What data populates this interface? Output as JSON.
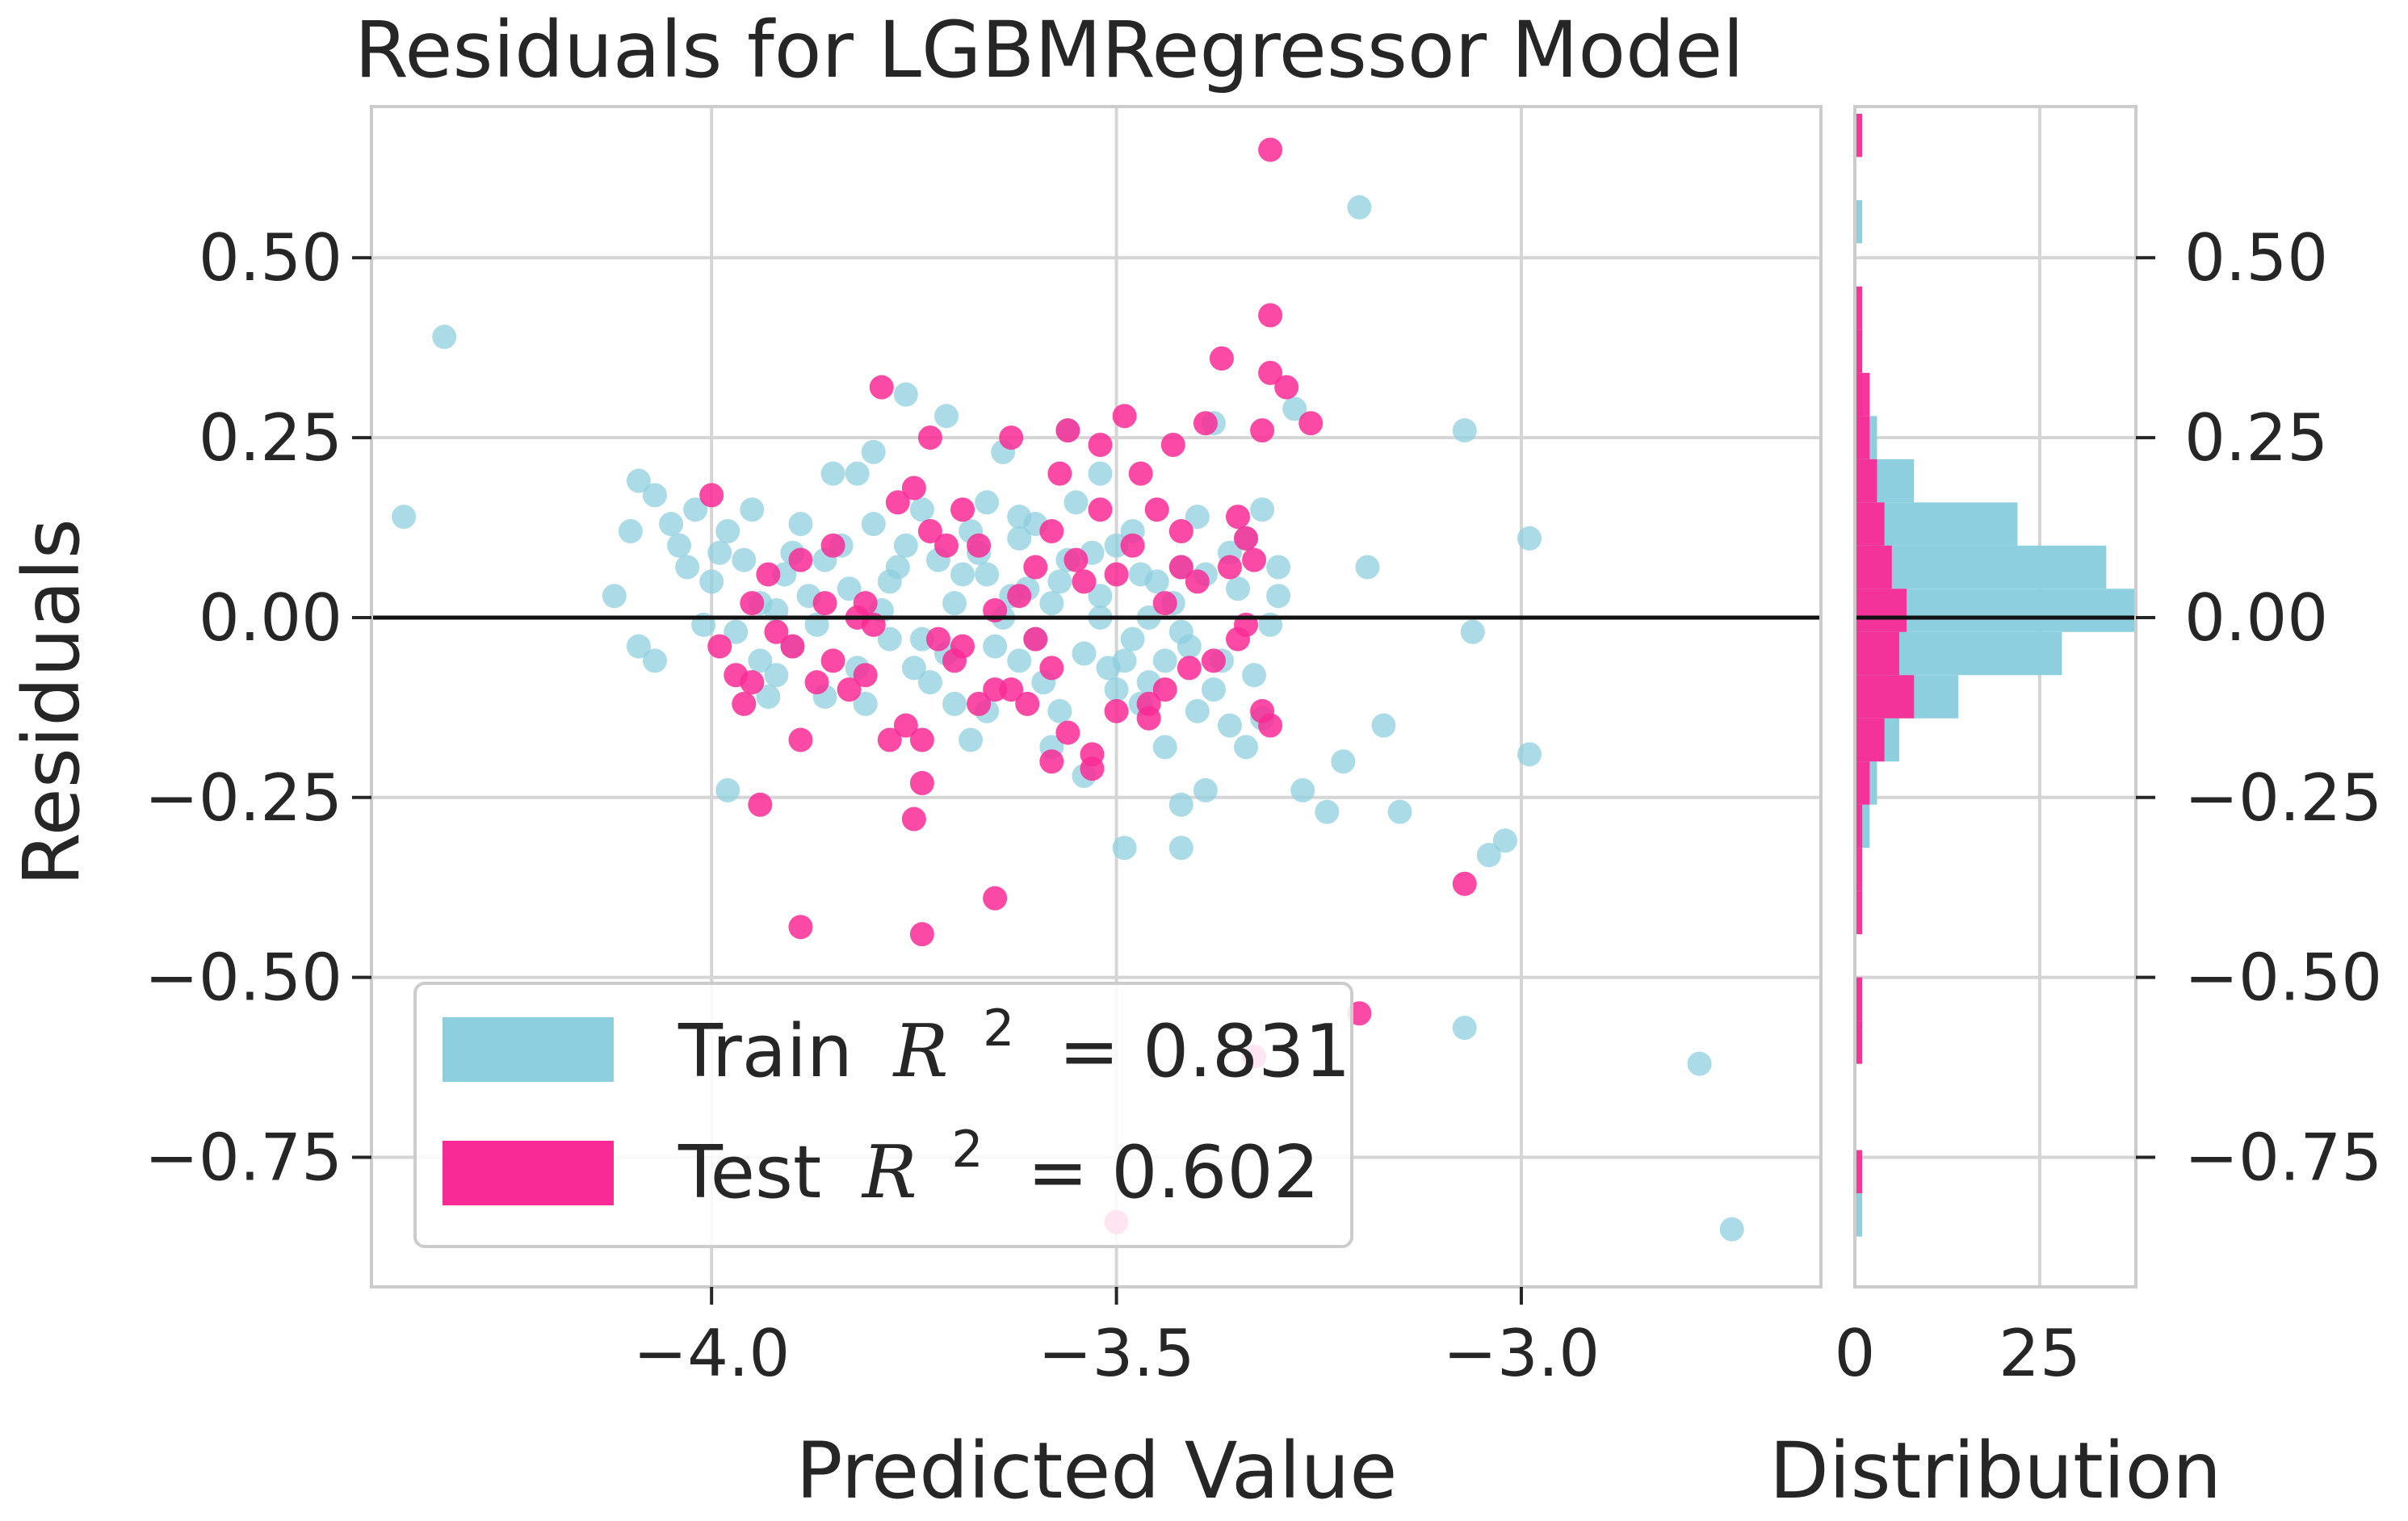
{
  "chart_data": {
    "type": "scatter",
    "title": "Residuals for LGBMRegressor Model",
    "xlabel": "Predicted Value",
    "ylabel": "Residuals",
    "hist_xlabel": "Distribution",
    "xlim": [
      -4.42,
      -2.63
    ],
    "ylim": [
      -0.93,
      0.71
    ],
    "xticks": [
      -4.0,
      -3.5,
      -3.0
    ],
    "xtick_labels": [
      "−4.0",
      "−3.5",
      "−3.0"
    ],
    "yticks": [
      0.5,
      0.25,
      0.0,
      -0.25,
      -0.5,
      -0.75
    ],
    "ytick_labels": [
      "0.50",
      "0.25",
      "0.00",
      "−0.25",
      "−0.50",
      "−0.75"
    ],
    "hist_xlim": [
      0,
      38
    ],
    "hist_xticks": [
      0,
      25
    ],
    "hist_xtick_labels": [
      "0",
      "25"
    ],
    "hline": 0.0,
    "colors": {
      "train": "#8ecfdf",
      "test": "#f92a95",
      "hline": "#111111",
      "frame": "#cccccc",
      "grid": "#d5d5d5"
    },
    "legend": {
      "location": "lower-left",
      "entries": [
        {
          "label": "Train",
          "math_var": "R",
          "math_exp": "2",
          "equals": "= 0.831",
          "series": "train"
        },
        {
          "label": "Test",
          "math_var": "R",
          "math_exp": "2",
          "equals": "= 0.602",
          "series": "test"
        }
      ]
    },
    "series": [
      {
        "name": "Train",
        "points": [
          [
            -4.33,
            0.39
          ],
          [
            -4.38,
            0.14
          ],
          [
            -3.2,
            0.57
          ],
          [
            -3.07,
            0.26
          ],
          [
            -2.99,
            0.11
          ],
          [
            -3.19,
            0.07
          ],
          [
            -3.06,
            -0.02
          ],
          [
            -2.99,
            -0.19
          ],
          [
            -3.02,
            -0.31
          ],
          [
            -3.04,
            -0.33
          ],
          [
            -3.07,
            -0.57
          ],
          [
            -2.78,
            -0.62
          ],
          [
            -2.74,
            -0.85
          ],
          [
            -3.17,
            -0.15
          ],
          [
            -3.22,
            -0.2
          ],
          [
            -3.15,
            -0.27
          ],
          [
            -3.24,
            -0.27
          ],
          [
            -3.27,
            -0.24
          ],
          [
            -3.28,
            0.29
          ],
          [
            -3.49,
            -0.32
          ],
          [
            -3.42,
            -0.32
          ],
          [
            -3.42,
            -0.26
          ],
          [
            -3.39,
            -0.24
          ],
          [
            -3.98,
            -0.24
          ],
          [
            -4.12,
            0.03
          ],
          [
            -4.1,
            0.12
          ],
          [
            -4.09,
            0.19
          ],
          [
            -4.07,
            0.17
          ],
          [
            -4.09,
            -0.04
          ],
          [
            -4.07,
            -0.06
          ],
          [
            -4.04,
            0.1
          ],
          [
            -4.02,
            0.15
          ],
          [
            -4.0,
            0.05
          ],
          [
            -3.98,
            0.12
          ],
          [
            -3.96,
            0.08
          ],
          [
            -3.94,
            0.02
          ],
          [
            -3.92,
            -0.08
          ],
          [
            -3.9,
            0.09
          ],
          [
            -3.88,
            0.03
          ],
          [
            -3.86,
            -0.11
          ],
          [
            -3.84,
            0.1
          ],
          [
            -3.82,
            0.2
          ],
          [
            -3.8,
            0.23
          ],
          [
            -3.78,
            0.05
          ],
          [
            -3.76,
            0.31
          ],
          [
            -3.74,
            -0.03
          ],
          [
            -3.72,
            0.08
          ],
          [
            -3.7,
            -0.12
          ],
          [
            -3.68,
            0.12
          ],
          [
            -3.66,
            0.06
          ],
          [
            -3.64,
            0.23
          ],
          [
            -3.62,
            0.14
          ],
          [
            -3.6,
            -0.03
          ],
          [
            -3.58,
            0.02
          ],
          [
            -3.56,
            0.26
          ],
          [
            -3.54,
            -0.22
          ],
          [
            -3.52,
            0.03
          ],
          [
            -3.5,
            -0.1
          ],
          [
            -3.48,
            0.12
          ],
          [
            -3.46,
            0.0
          ],
          [
            -3.44,
            -0.06
          ],
          [
            -3.42,
            0.07
          ],
          [
            -3.4,
            -0.13
          ],
          [
            -3.38,
            0.27
          ],
          [
            -3.36,
            0.09
          ],
          [
            -3.34,
            -0.18
          ],
          [
            -3.32,
            0.15
          ],
          [
            -3.3,
            0.03
          ],
          [
            -3.68,
            -0.17
          ],
          [
            -3.71,
            0.28
          ],
          [
            -3.63,
            0.03
          ],
          [
            -3.57,
            -0.13
          ],
          [
            -3.53,
            0.09
          ],
          [
            -3.47,
            0.06
          ],
          [
            -3.44,
            -0.18
          ],
          [
            -3.4,
            0.14
          ],
          [
            -3.36,
            -0.15
          ],
          [
            -3.85,
            0.2
          ],
          [
            -3.8,
            0.13
          ],
          [
            -3.75,
            -0.07
          ],
          [
            -3.7,
            0.02
          ],
          [
            -3.65,
            -0.04
          ],
          [
            -3.55,
            0.16
          ],
          [
            -3.49,
            -0.06
          ],
          [
            -3.45,
            0.05
          ],
          [
            -3.62,
            0.11
          ],
          [
            -3.58,
            -0.18
          ],
          [
            -3.52,
            0.2
          ],
          [
            -3.92,
            0.01
          ],
          [
            -3.97,
            -0.02
          ],
          [
            -4.03,
            0.07
          ],
          [
            -4.05,
            0.13
          ],
          [
            -3.9,
            -0.04
          ],
          [
            -3.86,
            0.08
          ],
          [
            -3.82,
            -0.07
          ],
          [
            -3.79,
            0.01
          ],
          [
            -3.76,
            0.1
          ],
          [
            -3.73,
            -0.09
          ],
          [
            -3.69,
            0.06
          ],
          [
            -3.66,
            -0.13
          ],
          [
            -3.61,
            0.04
          ],
          [
            -3.59,
            -0.09
          ],
          [
            -3.56,
            0.08
          ],
          [
            -3.51,
            -0.07
          ],
          [
            -3.47,
            -0.12
          ],
          [
            -3.43,
            0.02
          ],
          [
            -3.41,
            -0.04
          ],
          [
            -3.38,
            -0.1
          ],
          [
            -3.35,
            0.04
          ],
          [
            -3.33,
            -0.08
          ],
          [
            -3.31,
            -0.01
          ],
          [
            -3.95,
            0.15
          ],
          [
            -3.93,
            -0.11
          ],
          [
            -3.89,
            0.13
          ],
          [
            -3.87,
            -0.01
          ],
          [
            -3.83,
            0.04
          ],
          [
            -3.81,
            -0.12
          ],
          [
            -3.77,
            0.07
          ],
          [
            -3.74,
            0.15
          ],
          [
            -3.71,
            -0.05
          ],
          [
            -3.67,
            0.09
          ],
          [
            -3.64,
            0.0
          ],
          [
            -3.6,
            0.13
          ],
          [
            -3.57,
            0.05
          ],
          [
            -3.54,
            -0.05
          ],
          [
            -3.5,
            0.1
          ],
          [
            -3.46,
            -0.09
          ],
          [
            -3.42,
            -0.02
          ],
          [
            -3.39,
            0.06
          ],
          [
            -3.37,
            -0.06
          ],
          [
            -3.34,
            0.11
          ],
          [
            -4.01,
            -0.01
          ],
          [
            -3.99,
            0.09
          ],
          [
            -3.94,
            -0.06
          ],
          [
            -3.91,
            0.06
          ],
          [
            -3.78,
            -0.03
          ],
          [
            -3.66,
            0.16
          ],
          [
            -3.62,
            -0.06
          ],
          [
            -3.52,
            0.0
          ],
          [
            -3.48,
            -0.03
          ],
          [
            -3.32,
            -0.14
          ],
          [
            -3.3,
            0.07
          ]
        ]
      },
      {
        "name": "Test",
        "points": [
          [
            -3.31,
            0.65
          ],
          [
            -3.31,
            0.42
          ],
          [
            -3.31,
            0.34
          ],
          [
            -3.29,
            0.32
          ],
          [
            -3.26,
            0.27
          ],
          [
            -3.37,
            0.36
          ],
          [
            -3.32,
            0.26
          ],
          [
            -3.39,
            0.27
          ],
          [
            -3.43,
            0.24
          ],
          [
            -3.56,
            0.26
          ],
          [
            -3.52,
            0.24
          ],
          [
            -3.49,
            0.28
          ],
          [
            -3.47,
            0.2
          ],
          [
            -3.45,
            0.15
          ],
          [
            -3.42,
            0.12
          ],
          [
            -3.4,
            0.05
          ],
          [
            -3.35,
            0.14
          ],
          [
            -3.34,
            0.11
          ],
          [
            -3.33,
            0.08
          ],
          [
            -3.34,
            -0.01
          ],
          [
            -3.32,
            -0.13
          ],
          [
            -3.31,
            -0.15
          ],
          [
            -3.35,
            -0.03
          ],
          [
            -3.38,
            -0.06
          ],
          [
            -3.41,
            -0.07
          ],
          [
            -3.44,
            -0.1
          ],
          [
            -3.46,
            -0.14
          ],
          [
            -3.5,
            -0.13
          ],
          [
            -3.53,
            -0.19
          ],
          [
            -3.53,
            -0.21
          ],
          [
            -3.56,
            -0.16
          ],
          [
            -3.58,
            -0.07
          ],
          [
            -3.61,
            -0.12
          ],
          [
            -3.63,
            -0.1
          ],
          [
            -3.65,
            -0.1
          ],
          [
            -3.67,
            -0.12
          ],
          [
            -3.7,
            -0.06
          ],
          [
            -3.72,
            -0.03
          ],
          [
            -3.74,
            -0.17
          ],
          [
            -3.76,
            -0.15
          ],
          [
            -3.78,
            -0.17
          ],
          [
            -3.81,
            -0.08
          ],
          [
            -3.83,
            -0.1
          ],
          [
            -3.85,
            -0.06
          ],
          [
            -3.87,
            -0.09
          ],
          [
            -3.9,
            -0.04
          ],
          [
            -3.92,
            -0.02
          ],
          [
            -3.95,
            -0.09
          ],
          [
            -3.97,
            -0.08
          ],
          [
            -3.99,
            -0.04
          ],
          [
            -3.95,
            0.02
          ],
          [
            -3.93,
            0.06
          ],
          [
            -3.89,
            0.08
          ],
          [
            -3.86,
            0.02
          ],
          [
            -3.82,
            0.0
          ],
          [
            -3.8,
            -0.01
          ],
          [
            -3.77,
            0.16
          ],
          [
            -3.75,
            0.18
          ],
          [
            -3.73,
            0.12
          ],
          [
            -3.71,
            0.1
          ],
          [
            -3.69,
            0.15
          ],
          [
            -3.67,
            0.1
          ],
          [
            -3.65,
            0.01
          ],
          [
            -3.62,
            0.03
          ],
          [
            -3.6,
            0.07
          ],
          [
            -3.58,
            0.12
          ],
          [
            -3.55,
            0.08
          ],
          [
            -3.52,
            0.15
          ],
          [
            -3.5,
            0.06
          ],
          [
            -3.48,
            0.1
          ],
          [
            -3.44,
            0.02
          ],
          [
            -3.42,
            0.07
          ],
          [
            -3.79,
            0.32
          ],
          [
            -3.73,
            0.25
          ],
          [
            -3.63,
            0.25
          ],
          [
            -3.57,
            0.2
          ],
          [
            -3.89,
            -0.17
          ],
          [
            -3.94,
            -0.26
          ],
          [
            -3.96,
            -0.12
          ],
          [
            -4.0,
            0.17
          ],
          [
            -3.81,
            0.02
          ],
          [
            -3.74,
            -0.23
          ],
          [
            -3.75,
            -0.28
          ],
          [
            -3.89,
            -0.43
          ],
          [
            -3.74,
            -0.44
          ],
          [
            -3.65,
            -0.39
          ],
          [
            -3.07,
            -0.37
          ],
          [
            -3.2,
            -0.55
          ],
          [
            -3.5,
            -0.84
          ],
          [
            -3.33,
            -0.61
          ],
          [
            -3.85,
            0.1
          ],
          [
            -3.69,
            -0.04
          ],
          [
            -3.6,
            -0.03
          ],
          [
            -3.54,
            0.05
          ],
          [
            -3.36,
            0.07
          ],
          [
            -3.58,
            -0.2
          ],
          [
            -3.46,
            -0.12
          ]
        ]
      }
    ],
    "histogram": {
      "bin_edges": [
        -0.86,
        -0.8,
        -0.74,
        -0.68,
        -0.62,
        -0.56,
        -0.5,
        -0.44,
        -0.38,
        -0.32,
        -0.26,
        -0.2,
        -0.14,
        -0.08,
        -0.02,
        0.04,
        0.1,
        0.16,
        0.22,
        0.28,
        0.34,
        0.4,
        0.46,
        0.52,
        0.58,
        0.64,
        0.7
      ],
      "train_counts": [
        1,
        0,
        0,
        0,
        1,
        1,
        0,
        0,
        0,
        2,
        3,
        6,
        14,
        28,
        38,
        34,
        22,
        8,
        3,
        1,
        1,
        0,
        0,
        1,
        0,
        0
      ],
      "test_counts": [
        0,
        1,
        0,
        0,
        1,
        1,
        0,
        1,
        1,
        1,
        2,
        4,
        8,
        6,
        7,
        5,
        4,
        3,
        2,
        2,
        1,
        1,
        0,
        0,
        0,
        1
      ]
    }
  }
}
